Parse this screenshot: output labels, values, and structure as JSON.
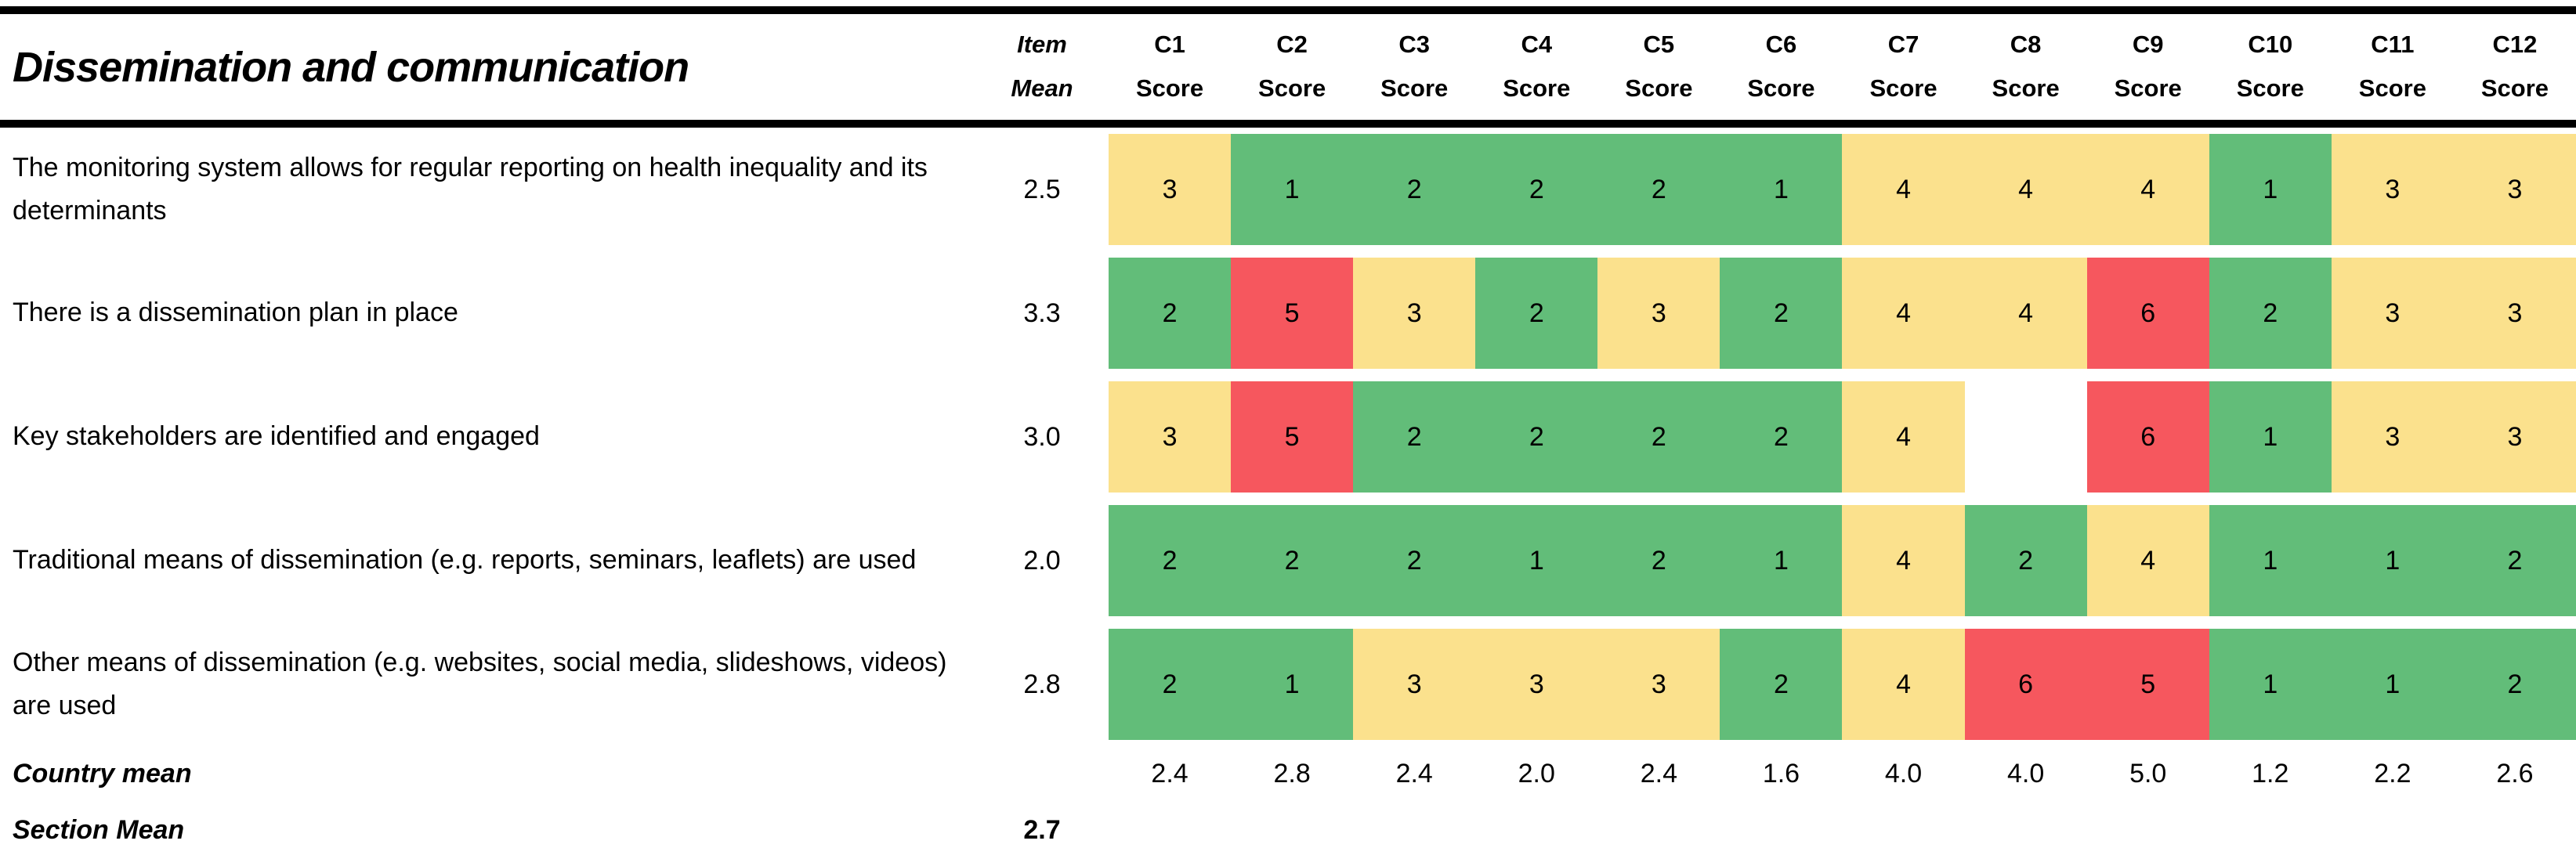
{
  "colors": {
    "green": "#62BD79",
    "yellow": "#FBE18D",
    "red": "#F6575E",
    "none": "#FFFFFF"
  },
  "table": {
    "title": "Dissemination and communication",
    "item_mean_header": {
      "line1": "Item",
      "line2": "Mean"
    },
    "columns": [
      {
        "id": "C1",
        "sub": "Score"
      },
      {
        "id": "C2",
        "sub": "Score"
      },
      {
        "id": "C3",
        "sub": "Score"
      },
      {
        "id": "C4",
        "sub": "Score"
      },
      {
        "id": "C5",
        "sub": "Score"
      },
      {
        "id": "C6",
        "sub": "Score"
      },
      {
        "id": "C7",
        "sub": "Score"
      },
      {
        "id": "C8",
        "sub": "Score"
      },
      {
        "id": "C9",
        "sub": "Score"
      },
      {
        "id": "C10",
        "sub": "Score"
      },
      {
        "id": "C11",
        "sub": "Score"
      },
      {
        "id": "C12",
        "sub": "Score"
      }
    ],
    "rows": [
      {
        "label": "The monitoring system allows for regular reporting on health inequality and its determinants",
        "mean": "2.5",
        "scores": [
          {
            "value": "3",
            "color": "yellow"
          },
          {
            "value": "1",
            "color": "green"
          },
          {
            "value": "2",
            "color": "green"
          },
          {
            "value": "2",
            "color": "green"
          },
          {
            "value": "2",
            "color": "green"
          },
          {
            "value": "1",
            "color": "green"
          },
          {
            "value": "4",
            "color": "yellow"
          },
          {
            "value": "4",
            "color": "yellow"
          },
          {
            "value": "4",
            "color": "yellow"
          },
          {
            "value": "1",
            "color": "green"
          },
          {
            "value": "3",
            "color": "yellow"
          },
          {
            "value": "3",
            "color": "yellow"
          }
        ]
      },
      {
        "label": "There is a dissemination plan in place",
        "mean": "3.3",
        "scores": [
          {
            "value": "2",
            "color": "green"
          },
          {
            "value": "5",
            "color": "red"
          },
          {
            "value": "3",
            "color": "yellow"
          },
          {
            "value": "2",
            "color": "green"
          },
          {
            "value": "3",
            "color": "yellow"
          },
          {
            "value": "2",
            "color": "green"
          },
          {
            "value": "4",
            "color": "yellow"
          },
          {
            "value": "4",
            "color": "yellow"
          },
          {
            "value": "6",
            "color": "red"
          },
          {
            "value": "2",
            "color": "green"
          },
          {
            "value": "3",
            "color": "yellow"
          },
          {
            "value": "3",
            "color": "yellow"
          }
        ]
      },
      {
        "label": "Key stakeholders are identified and engaged",
        "mean": "3.0",
        "scores": [
          {
            "value": "3",
            "color": "yellow"
          },
          {
            "value": "5",
            "color": "red"
          },
          {
            "value": "2",
            "color": "green"
          },
          {
            "value": "2",
            "color": "green"
          },
          {
            "value": "2",
            "color": "green"
          },
          {
            "value": "2",
            "color": "green"
          },
          {
            "value": "4",
            "color": "yellow"
          },
          {
            "value": "",
            "color": "none"
          },
          {
            "value": "6",
            "color": "red"
          },
          {
            "value": "1",
            "color": "green"
          },
          {
            "value": "3",
            "color": "yellow"
          },
          {
            "value": "3",
            "color": "yellow"
          }
        ]
      },
      {
        "label": "Traditional means of dissemination (e.g. reports, seminars, leaflets) are used",
        "mean": "2.0",
        "scores": [
          {
            "value": "2",
            "color": "green"
          },
          {
            "value": "2",
            "color": "green"
          },
          {
            "value": "2",
            "color": "green"
          },
          {
            "value": "1",
            "color": "green"
          },
          {
            "value": "2",
            "color": "green"
          },
          {
            "value": "1",
            "color": "green"
          },
          {
            "value": "4",
            "color": "yellow"
          },
          {
            "value": "2",
            "color": "green"
          },
          {
            "value": "4",
            "color": "yellow"
          },
          {
            "value": "1",
            "color": "green"
          },
          {
            "value": "1",
            "color": "green"
          },
          {
            "value": "2",
            "color": "green"
          }
        ]
      },
      {
        "label": "Other means of dissemination (e.g. websites, social media, slideshows, videos) are used",
        "mean": "2.8",
        "scores": [
          {
            "value": "2",
            "color": "green"
          },
          {
            "value": "1",
            "color": "green"
          },
          {
            "value": "3",
            "color": "yellow"
          },
          {
            "value": "3",
            "color": "yellow"
          },
          {
            "value": "3",
            "color": "yellow"
          },
          {
            "value": "2",
            "color": "green"
          },
          {
            "value": "4",
            "color": "yellow"
          },
          {
            "value": "6",
            "color": "red"
          },
          {
            "value": "5",
            "color": "red"
          },
          {
            "value": "1",
            "color": "green"
          },
          {
            "value": "1",
            "color": "green"
          },
          {
            "value": "2",
            "color": "green"
          }
        ]
      }
    ],
    "country_mean": {
      "label": "Country mean",
      "values": [
        "2.4",
        "2.8",
        "2.4",
        "2.0",
        "2.4",
        "1.6",
        "4.0",
        "4.0",
        "5.0",
        "1.2",
        "2.2",
        "2.6"
      ]
    },
    "section_mean": {
      "label": "Section Mean",
      "value": "2.7"
    }
  },
  "chart_data": {
    "type": "heatmap",
    "title": "Dissemination and communication",
    "columns": [
      "C1",
      "C2",
      "C3",
      "C4",
      "C5",
      "C6",
      "C7",
      "C8",
      "C9",
      "C10",
      "C11",
      "C12"
    ],
    "rows": [
      "The monitoring system allows for regular reporting on health inequality and its determinants",
      "There is a dissemination plan in place",
      "Key stakeholders are identified and engaged",
      "Traditional means of dissemination (e.g. reports, seminars, leaflets) are used",
      "Other means of dissemination (e.g. websites, social media, slideshows, videos) are used"
    ],
    "values": [
      [
        3,
        1,
        2,
        2,
        2,
        1,
        4,
        4,
        4,
        1,
        3,
        3
      ],
      [
        2,
        5,
        3,
        2,
        3,
        2,
        4,
        4,
        6,
        2,
        3,
        3
      ],
      [
        3,
        5,
        2,
        2,
        2,
        2,
        4,
        null,
        6,
        1,
        3,
        3
      ],
      [
        2,
        2,
        2,
        1,
        2,
        1,
        4,
        2,
        4,
        1,
        1,
        2
      ],
      [
        2,
        1,
        3,
        3,
        3,
        2,
        4,
        6,
        5,
        1,
        1,
        2
      ]
    ],
    "item_means": [
      2.5,
      3.3,
      3.0,
      2.0,
      2.8
    ],
    "country_means": [
      2.4,
      2.8,
      2.4,
      2.0,
      2.4,
      1.6,
      4.0,
      4.0,
      5.0,
      1.2,
      2.2,
      2.6
    ],
    "section_mean": 2.7,
    "color_scale": {
      "green": "scores 1-2",
      "yellow": "scores 3-4",
      "red": "scores 5-6",
      "white": "no data"
    }
  }
}
